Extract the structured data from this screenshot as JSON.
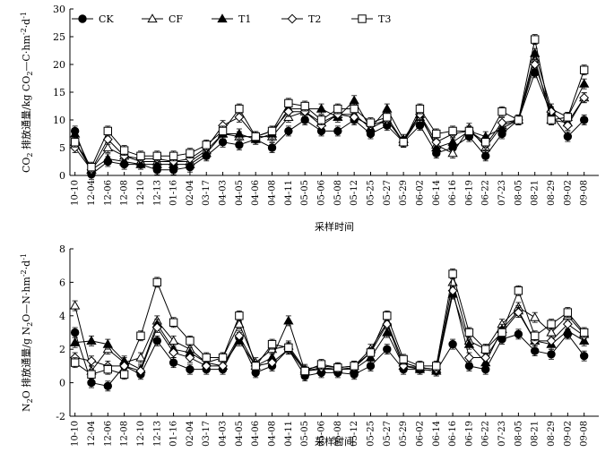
{
  "chart_data": [
    {
      "type": "line",
      "ylabel_html_parts": [
        "CO",
        "2",
        " 排放通量/kg CO",
        "2",
        "—C·hm",
        "-2",
        "·d",
        "-1"
      ],
      "xlabel": "采样时间",
      "ylim": [
        0,
        30
      ],
      "yticks": [
        0,
        5,
        10,
        15,
        20,
        25,
        30
      ],
      "legend_position": "top-left",
      "categories": [
        "10-10",
        "12-04",
        "12-06",
        "12-08",
        "12-10",
        "12-13",
        "01-16",
        "02-04",
        "03-17",
        "04-03",
        "04-05",
        "04-06",
        "04-08",
        "04-11",
        "05-05",
        "05-06",
        "05-08",
        "05-12",
        "05-25",
        "05-27",
        "05-29",
        "06-02",
        "06-14",
        "06-16",
        "06-19",
        "06-22",
        "07-23",
        "08-05",
        "08-21",
        "08-29",
        "09-02",
        "09-08"
      ],
      "series": [
        {
          "name": "CK",
          "marker": "circle-filled",
          "values": [
            8.0,
            0.2,
            2.5,
            2.0,
            2.0,
            1.0,
            1.0,
            1.5,
            3.5,
            6.0,
            5.5,
            6.5,
            5.0,
            8.0,
            10.0,
            8.0,
            8.0,
            10.0,
            7.5,
            9.0,
            6.0,
            9.0,
            4.0,
            5.0,
            7.0,
            3.5,
            7.5,
            10.0,
            18.5,
            11.0,
            7.0,
            10.0
          ]
        },
        {
          "name": "CF",
          "marker": "triangle-open",
          "values": [
            6.0,
            1.0,
            5.0,
            3.5,
            2.5,
            2.5,
            2.5,
            2.5,
            4.5,
            7.5,
            7.0,
            7.0,
            7.0,
            10.5,
            11.5,
            9.5,
            11.0,
            11.0,
            8.5,
            10.0,
            6.0,
            10.5,
            5.5,
            4.0,
            8.5,
            5.0,
            9.0,
            10.0,
            21.0,
            10.0,
            9.5,
            14.0
          ]
        },
        {
          "name": "T1",
          "marker": "triangle-filled",
          "values": [
            7.5,
            1.0,
            3.0,
            2.5,
            2.0,
            2.0,
            2.0,
            2.0,
            4.0,
            7.5,
            7.5,
            6.5,
            7.5,
            12.0,
            12.0,
            12.0,
            10.5,
            13.5,
            8.5,
            12.0,
            6.5,
            11.0,
            5.0,
            6.0,
            8.0,
            7.0,
            8.5,
            10.0,
            22.0,
            12.0,
            10.5,
            16.5
          ]
        },
        {
          "name": "T2",
          "marker": "diamond-open",
          "values": [
            5.0,
            1.0,
            6.5,
            3.5,
            3.0,
            3.0,
            2.5,
            3.0,
            5.0,
            9.0,
            10.5,
            7.0,
            8.0,
            11.5,
            11.5,
            9.0,
            11.0,
            10.5,
            9.0,
            10.0,
            6.0,
            11.0,
            6.0,
            7.5,
            8.0,
            5.5,
            9.5,
            10.0,
            20.0,
            11.5,
            9.0,
            14.0
          ]
        },
        {
          "name": "T3",
          "marker": "square-open",
          "values": [
            6.0,
            1.5,
            8.0,
            4.5,
            3.5,
            3.5,
            3.5,
            4.0,
            5.5,
            8.0,
            12.0,
            7.0,
            8.0,
            13.0,
            12.5,
            10.0,
            12.0,
            12.0,
            9.5,
            10.5,
            6.0,
            12.0,
            7.5,
            8.0,
            8.0,
            6.0,
            11.5,
            10.0,
            24.5,
            10.0,
            10.5,
            19.0
          ]
        }
      ]
    },
    {
      "type": "line",
      "ylabel_html_parts": [
        "N",
        "2",
        "O 排放通量/g N",
        "2",
        "O—N·hm",
        "-2",
        "·d",
        "-1"
      ],
      "xlabel": "采样时间",
      "ylim": [
        -2,
        8
      ],
      "yticks": [
        -2,
        0,
        2,
        4,
        6,
        8
      ],
      "categories": [
        "10-10",
        "12-04",
        "12-06",
        "12-08",
        "12-10",
        "12-13",
        "01-16",
        "02-04",
        "03-17",
        "04-03",
        "04-05",
        "04-06",
        "04-08",
        "04-11",
        "05-05",
        "05-06",
        "05-08",
        "05-12",
        "05-25",
        "05-27",
        "05-29",
        "06-02",
        "06-14",
        "06-16",
        "06-19",
        "06-22",
        "07-23",
        "08-05",
        "08-21",
        "08-29",
        "09-02",
        "09-08"
      ],
      "series": [
        {
          "name": "CK",
          "marker": "circle-filled",
          "values": [
            3.0,
            0.0,
            -0.2,
            1.0,
            0.5,
            2.5,
            1.2,
            0.8,
            0.8,
            0.8,
            2.7,
            0.6,
            1.0,
            2.0,
            0.4,
            0.6,
            0.6,
            0.5,
            1.0,
            2.0,
            0.8,
            0.8,
            0.7,
            2.3,
            1.0,
            0.8,
            2.6,
            2.9,
            1.9,
            1.7,
            2.9,
            1.6
          ]
        },
        {
          "name": "CF",
          "marker": "triangle-open",
          "values": [
            4.6,
            0.7,
            2.0,
            1.2,
            1.5,
            3.7,
            2.5,
            2.0,
            1.2,
            1.5,
            3.5,
            1.2,
            2.0,
            2.2,
            0.8,
            1.0,
            0.9,
            1.0,
            2.0,
            3.6,
            1.2,
            0.9,
            0.8,
            6.0,
            2.5,
            2.0,
            3.5,
            4.5,
            3.9,
            3.0,
            4.0,
            2.9
          ]
        },
        {
          "name": "T1",
          "marker": "triangle-filled",
          "values": [
            2.4,
            2.5,
            2.3,
            1.3,
            0.8,
            3.5,
            2.0,
            1.8,
            1.2,
            1.0,
            2.5,
            1.0,
            1.5,
            3.7,
            0.7,
            0.8,
            0.8,
            0.8,
            1.5,
            3.0,
            1.0,
            0.8,
            0.7,
            5.3,
            2.3,
            1.2,
            3.2,
            4.3,
            2.5,
            2.3,
            3.1,
            2.5
          ]
        },
        {
          "name": "T2",
          "marker": "diamond-open",
          "values": [
            1.5,
            1.3,
            1.0,
            1.0,
            0.7,
            3.3,
            1.8,
            1.5,
            1.0,
            1.0,
            2.8,
            1.0,
            1.2,
            2.0,
            0.7,
            0.9,
            0.8,
            0.9,
            1.8,
            3.5,
            1.0,
            0.9,
            0.8,
            5.5,
            1.5,
            1.5,
            3.0,
            4.2,
            2.5,
            2.5,
            3.5,
            2.8
          ]
        },
        {
          "name": "T3",
          "marker": "square-open",
          "values": [
            1.2,
            0.5,
            0.8,
            0.5,
            2.8,
            6.0,
            3.6,
            2.5,
            1.5,
            1.5,
            4.0,
            1.0,
            2.3,
            2.1,
            0.7,
            1.1,
            0.9,
            1.0,
            1.8,
            4.0,
            1.4,
            1.0,
            1.0,
            6.5,
            3.0,
            2.0,
            3.0,
            5.5,
            2.8,
            3.5,
            4.2,
            3.0
          ]
        }
      ]
    }
  ]
}
